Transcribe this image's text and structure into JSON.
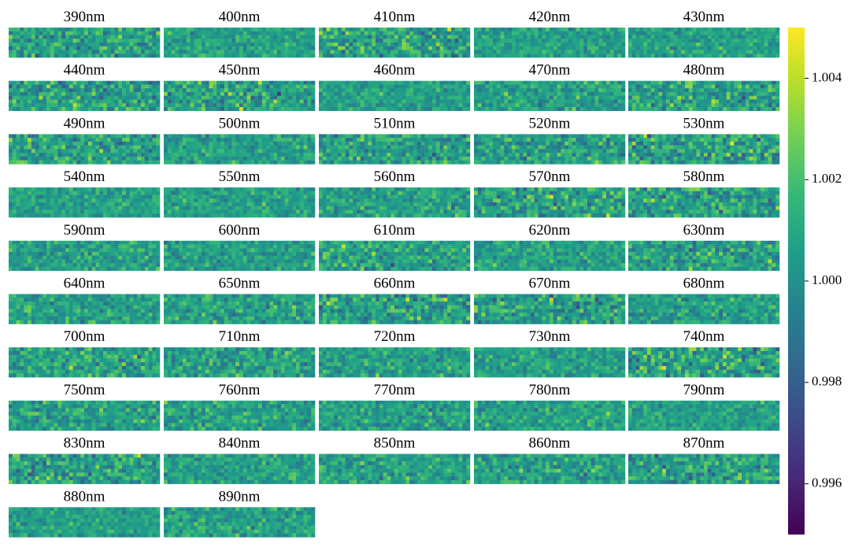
{
  "chart_data": {
    "type": "heatmap-grid",
    "panels": [
      "390nm",
      "400nm",
      "410nm",
      "420nm",
      "430nm",
      "440nm",
      "450nm",
      "460nm",
      "470nm",
      "480nm",
      "490nm",
      "500nm",
      "510nm",
      "520nm",
      "530nm",
      "540nm",
      "550nm",
      "560nm",
      "570nm",
      "580nm",
      "590nm",
      "600nm",
      "610nm",
      "620nm",
      "630nm",
      "640nm",
      "650nm",
      "660nm",
      "670nm",
      "680nm",
      "700nm",
      "710nm",
      "720nm",
      "730nm",
      "740nm",
      "750nm",
      "760nm",
      "770nm",
      "780nm",
      "790nm",
      "830nm",
      "840nm",
      "850nm",
      "860nm",
      "870nm",
      "880nm",
      "890nm"
    ],
    "colormap": "viridis",
    "clim": [
      0.995,
      1.005
    ],
    "colorbar_ticks": [
      0.996,
      0.998,
      {
        "value": 1,
        "label": "1.000"
      },
      1.002,
      1.004
    ]
  }
}
